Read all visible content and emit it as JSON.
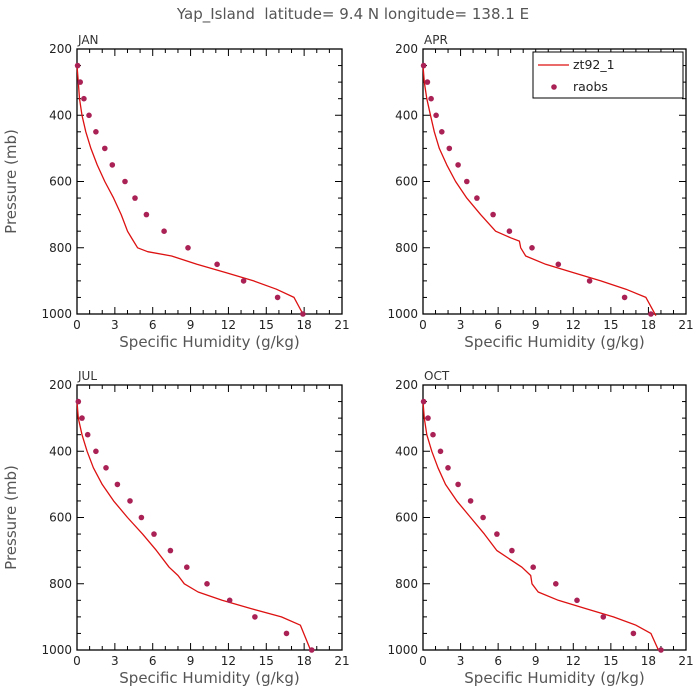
{
  "title": "Yap_Island  latitude= 9.4 N longitude= 138.1 E",
  "colors": {
    "model": "#dd1111",
    "obs": "#aa2255",
    "axis": "#000000",
    "label": "#555555"
  },
  "legend": {
    "placement": "top-right of APR panel",
    "model_label": "zt92_1",
    "obs_label": "raobs"
  },
  "chart_data": [
    {
      "type": "line",
      "panel": "JAN",
      "xlabel": "Specific Humidity (g/kg)",
      "ylabel": "Pressure (mb)",
      "xlim": [
        0,
        21
      ],
      "ylim": [
        1000,
        200
      ],
      "xticks": [
        0,
        3,
        6,
        9,
        12,
        15,
        18,
        21
      ],
      "yticks": [
        200,
        400,
        600,
        800,
        1000
      ],
      "series": [
        {
          "name": "zt92_1",
          "kind": "line",
          "x": [
            0.0,
            0.1,
            0.2,
            0.4,
            0.7,
            1.1,
            1.6,
            2.2,
            2.9,
            3.5,
            4.0,
            4.4,
            4.8,
            5.6,
            7.5,
            9.5,
            11.8,
            14.0,
            15.8,
            17.2,
            17.9
          ],
          "y": [
            250,
            300,
            350,
            400,
            450,
            500,
            550,
            600,
            650,
            700,
            750,
            775,
            800,
            812,
            825,
            850,
            875,
            900,
            925,
            950,
            1000
          ]
        },
        {
          "name": "raobs",
          "kind": "scatter",
          "x": [
            0.05,
            0.25,
            0.55,
            0.95,
            1.5,
            2.2,
            2.8,
            3.8,
            4.6,
            5.5,
            6.9,
            8.8,
            11.1,
            13.2,
            15.9,
            17.9
          ],
          "y": [
            250,
            300,
            350,
            400,
            450,
            500,
            550,
            600,
            650,
            700,
            750,
            800,
            850,
            900,
            950,
            1000
          ]
        }
      ]
    },
    {
      "type": "line",
      "panel": "APR",
      "xlabel": "Specific Humidity (g/kg)",
      "ylabel": "",
      "xlim": [
        0,
        21
      ],
      "ylim": [
        1000,
        200
      ],
      "xticks": [
        0,
        3,
        6,
        9,
        12,
        15,
        18,
        21
      ],
      "yticks": [
        200,
        400,
        600,
        800,
        1000
      ],
      "series": [
        {
          "name": "zt92_1",
          "kind": "line",
          "x": [
            0.0,
            0.1,
            0.3,
            0.6,
            0.9,
            1.3,
            1.9,
            2.6,
            3.5,
            4.6,
            5.8,
            7.0,
            7.7,
            7.8,
            8.2,
            9.8,
            12.0,
            14.2,
            16.2,
            17.8,
            18.6
          ],
          "y": [
            250,
            300,
            350,
            400,
            450,
            500,
            550,
            600,
            650,
            700,
            750,
            770,
            780,
            800,
            825,
            850,
            875,
            900,
            925,
            950,
            1005
          ]
        },
        {
          "name": "raobs",
          "kind": "scatter",
          "x": [
            0.05,
            0.35,
            0.65,
            1.05,
            1.5,
            2.1,
            2.8,
            3.5,
            4.3,
            5.6,
            6.9,
            8.7,
            10.8,
            13.3,
            16.1,
            18.2
          ],
          "y": [
            250,
            300,
            350,
            400,
            450,
            500,
            550,
            600,
            650,
            700,
            750,
            800,
            850,
            900,
            950,
            1000
          ]
        }
      ]
    },
    {
      "type": "line",
      "panel": "JUL",
      "xlabel": "Specific Humidity (g/kg)",
      "ylabel": "Pressure (mb)",
      "xlim": [
        0,
        21
      ],
      "ylim": [
        1000,
        200
      ],
      "xticks": [
        0,
        3,
        6,
        9,
        12,
        15,
        18,
        21
      ],
      "yticks": [
        200,
        400,
        600,
        800,
        1000
      ],
      "series": [
        {
          "name": "zt92_1",
          "kind": "line",
          "x": [
            0.0,
            0.1,
            0.4,
            0.8,
            1.3,
            2.0,
            2.9,
            4.0,
            5.2,
            6.3,
            7.3,
            8.0,
            8.5,
            9.6,
            11.5,
            13.8,
            16.2,
            17.7,
            18.5
          ],
          "y": [
            250,
            300,
            350,
            400,
            450,
            500,
            550,
            600,
            650,
            700,
            750,
            775,
            800,
            825,
            850,
            875,
            900,
            925,
            1000
          ]
        },
        {
          "name": "raobs",
          "kind": "scatter",
          "x": [
            0.1,
            0.4,
            0.85,
            1.5,
            2.3,
            3.2,
            4.2,
            5.1,
            6.1,
            7.4,
            8.7,
            10.3,
            12.1,
            14.1,
            16.6,
            18.6
          ],
          "y": [
            250,
            300,
            350,
            400,
            450,
            500,
            550,
            600,
            650,
            700,
            750,
            800,
            850,
            900,
            950,
            1000
          ]
        }
      ]
    },
    {
      "type": "line",
      "panel": "OCT",
      "xlabel": "Specific Humidity (g/kg)",
      "ylabel": "",
      "xlim": [
        0,
        21
      ],
      "ylim": [
        1000,
        200
      ],
      "xticks": [
        0,
        3,
        6,
        9,
        12,
        15,
        18,
        21
      ],
      "yticks": [
        200,
        400,
        600,
        800,
        1000
      ],
      "series": [
        {
          "name": "zt92_1",
          "kind": "line",
          "x": [
            0.0,
            0.1,
            0.3,
            0.7,
            1.2,
            1.8,
            2.7,
            3.8,
            4.9,
            5.9,
            6.9,
            7.9,
            8.6,
            8.7,
            9.2,
            10.8,
            13.0,
            15.2,
            17.0,
            18.2,
            18.8
          ],
          "y": [
            250,
            300,
            350,
            400,
            450,
            500,
            550,
            600,
            650,
            700,
            725,
            750,
            775,
            800,
            825,
            850,
            875,
            900,
            925,
            950,
            1000
          ]
        },
        {
          "name": "raobs",
          "kind": "scatter",
          "x": [
            0.05,
            0.4,
            0.8,
            1.4,
            2.0,
            2.8,
            3.8,
            4.8,
            5.9,
            7.1,
            8.8,
            10.6,
            12.3,
            14.4,
            16.8,
            19.0
          ],
          "y": [
            250,
            300,
            350,
            400,
            450,
            500,
            550,
            600,
            650,
            700,
            750,
            800,
            850,
            900,
            950,
            1000
          ]
        }
      ]
    }
  ]
}
